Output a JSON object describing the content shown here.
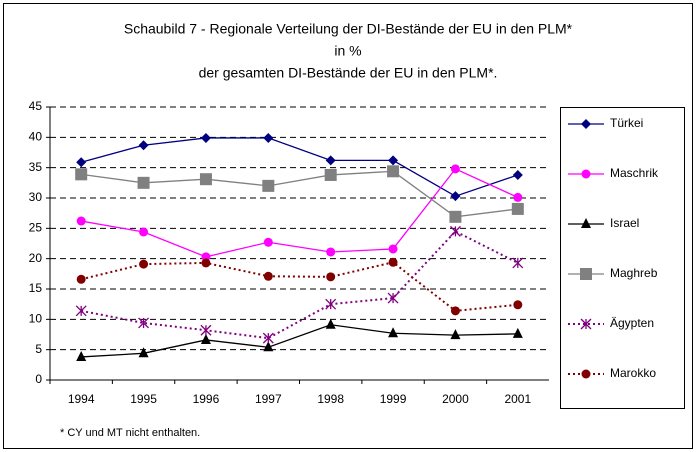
{
  "chart_data": {
    "type": "line",
    "title_lines": [
      "Schaubild 7 - Regionale Verteilung der DI-Bestände der EU in den PLM*",
      "in  %",
      "der gesamten DI-Bestände der EU in den PLM*."
    ],
    "footnote": "* CY und MT nicht enthalten.",
    "categories": [
      "1994",
      "1995",
      "1996",
      "1997",
      "1998",
      "1999",
      "2000",
      "2001"
    ],
    "ylim": [
      0,
      45
    ],
    "yticks": [
      0,
      5,
      10,
      15,
      20,
      25,
      30,
      35,
      40,
      45
    ],
    "grid": true,
    "legend": "right",
    "series": [
      {
        "name": "Türkei",
        "color": "#000080",
        "marker": "diamond",
        "line_style": "solid",
        "values": [
          35.9,
          38.7,
          39.9,
          39.9,
          36.2,
          36.2,
          30.3,
          33.8
        ]
      },
      {
        "name": "Maschrik",
        "color": "#ff00ff",
        "marker": "circle",
        "line_style": "solid",
        "values": [
          26.2,
          24.4,
          20.3,
          22.7,
          21.1,
          21.6,
          34.8,
          30.1
        ]
      },
      {
        "name": "Israel",
        "color": "#000000",
        "marker": "triangle",
        "line_style": "solid",
        "values": [
          3.8,
          4.4,
          6.6,
          5.4,
          9.1,
          7.7,
          7.4,
          7.6
        ]
      },
      {
        "name": "Maghreb",
        "color": "#808080",
        "marker": "square",
        "line_style": "solid",
        "values": [
          33.9,
          32.5,
          33.1,
          32.0,
          33.8,
          34.4,
          26.9,
          28.2
        ]
      },
      {
        "name": "Ägypten",
        "color": "#800080",
        "marker": "star",
        "line_style": "dotted",
        "values": [
          11.4,
          9.4,
          8.2,
          6.9,
          12.5,
          13.5,
          24.5,
          19.3
        ]
      },
      {
        "name": "Marokko",
        "color": "#800000",
        "marker": "circle",
        "line_style": "dotted",
        "values": [
          16.6,
          19.1,
          19.3,
          17.1,
          17.0,
          19.4,
          11.4,
          12.4
        ]
      }
    ]
  }
}
